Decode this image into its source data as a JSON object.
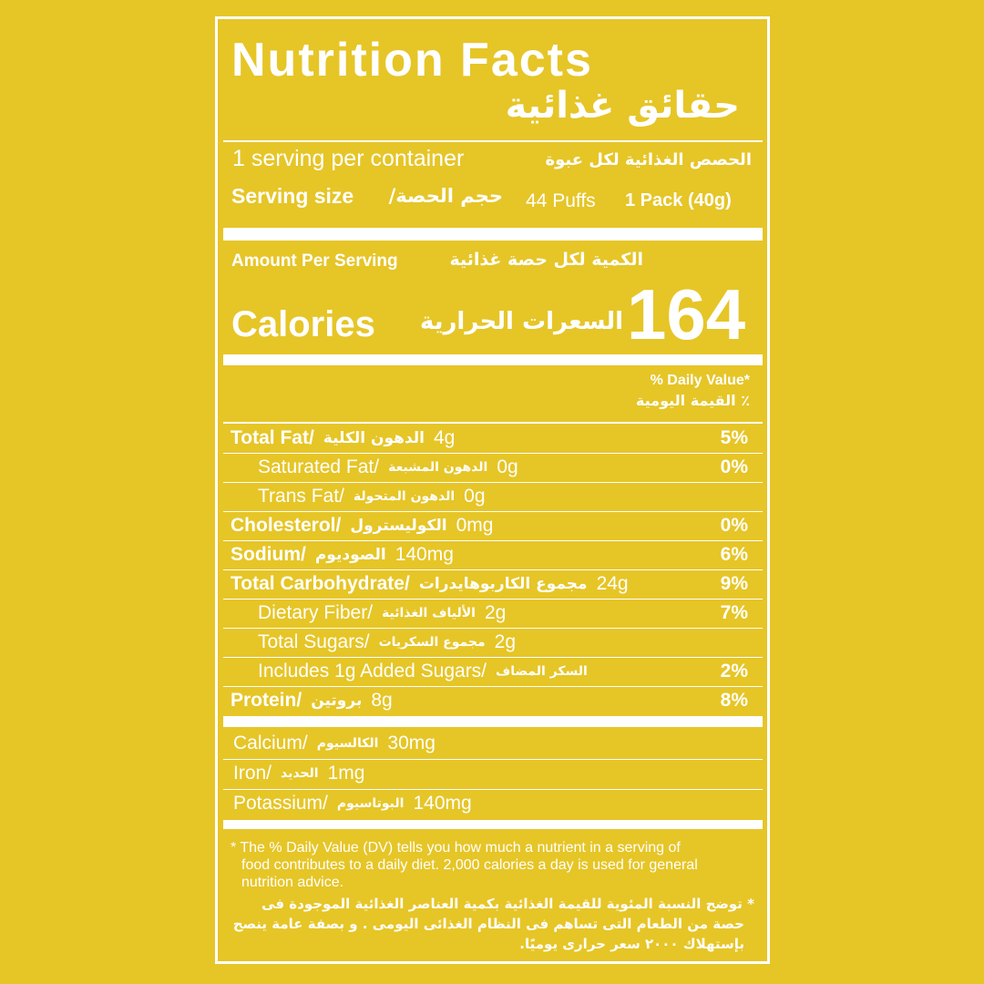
{
  "header": {
    "title": "Nutrition Facts",
    "title_ar": "حقائق غذائية"
  },
  "servings": {
    "per_container": "1 serving per container",
    "per_container_ar": "الحصص الغذائية لكل عبوة",
    "size_label": "Serving size",
    "size_label_ar": "حجم الحصة/",
    "size_puffs": "44 Puffs",
    "size_pack": "1 Pack (40g)"
  },
  "amount": {
    "label": "Amount Per Serving",
    "label_ar": "الكمية لكل حصة غذائية"
  },
  "calories": {
    "label": "Calories",
    "label_ar": "السعرات الحرارية",
    "value": "164"
  },
  "daily_value": {
    "label": "% Daily Value*",
    "label_ar": "٪ القيمة اليومية"
  },
  "nutrients": [
    {
      "name": "Total Fat/",
      "name_ar": "الدهون الكلية",
      "amount": "4g",
      "dv": "5%"
    },
    {
      "name": "Saturated Fat/",
      "name_ar": "الدهون المشبعة",
      "amount": "0g",
      "dv": "0%"
    },
    {
      "name": "Trans Fat/",
      "name_ar": "الدهون المتحولة",
      "amount": "0g"
    },
    {
      "name": "Cholesterol/",
      "name_ar": "الكوليسترول",
      "amount": "0mg",
      "dv": "0%"
    },
    {
      "name": "Sodium/",
      "name_ar": "الصوديوم",
      "amount": "140mg",
      "dv": "6%"
    },
    {
      "name": "Total Carbohydrate/",
      "name_ar": "مجموع الكاربوهايدرات",
      "amount": "24g",
      "dv": "9%"
    },
    {
      "name": "Dietary Fiber/",
      "name_ar": "الألياف الغذائية",
      "amount": "2g",
      "dv": "7%"
    },
    {
      "name": "Total Sugars/",
      "name_ar": "مجموع السكريات",
      "amount": "2g"
    },
    {
      "name": "Includes 1g Added Sugars/",
      "name_ar": "السكر المضاف",
      "dv": "2%"
    },
    {
      "name": "Protein/",
      "name_ar": "بروتين",
      "amount": "8g",
      "dv": "8%"
    }
  ],
  "minerals": [
    {
      "name": "Calcium/",
      "name_ar": "الكالسيوم",
      "amount": "30mg"
    },
    {
      "name": "Iron/",
      "name_ar": "الحديد",
      "amount": "1mg"
    },
    {
      "name": "Potassium/",
      "name_ar": "البوتاسيوم",
      "amount": "140mg"
    }
  ],
  "footnote": {
    "lines": [
      "* The % Daily Value (DV) tells you how much a nutrient in a serving of",
      "food contributes to a daily diet. 2,000 calories a day is used for general",
      "nutrition advice."
    ],
    "lines_ar": [
      "* توضح النسبة المئوية للقيمة الغذائية بكمية العناصر الغذائية الموجودة فى",
      "حصة من الطعام التى تساهم فى النظام الغذائى اليومى . و بصفة عامة ينصح",
      "بإستهلاك ٢٠٠٠ سعر حرارى يوميًا."
    ]
  }
}
